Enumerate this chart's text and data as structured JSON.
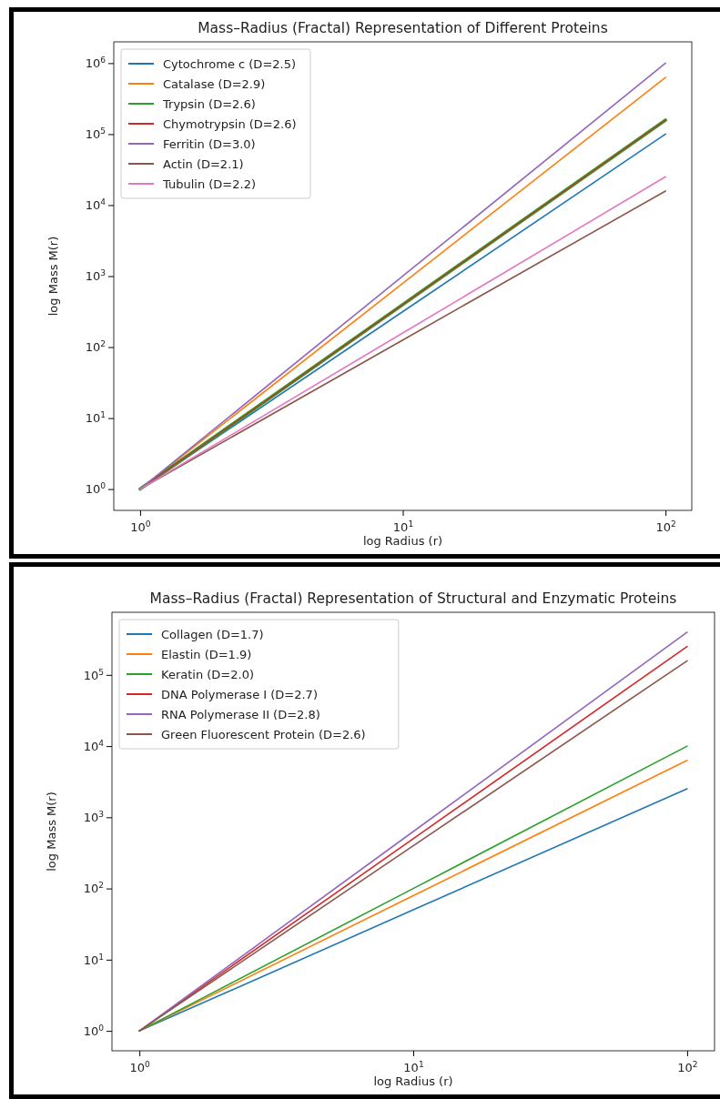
{
  "chart_data": [
    {
      "type": "line",
      "title": "Mass–Radius (Fractal) Representation of Different Proteins",
      "xlabel": "log Radius (r)",
      "ylabel": "log Mass M(r)",
      "log": "xy",
      "legend": "top left",
      "x": [
        1,
        10,
        100
      ],
      "xlim": [
        0.794,
        125.9
      ],
      "ylim": [
        0.501,
        1995000
      ],
      "xticks": [
        {
          "value": 1,
          "label": "10$^{0}$"
        },
        {
          "value": 10,
          "label": "10$^{1}$"
        },
        {
          "value": 100,
          "label": "10$^{2}$"
        }
      ],
      "yticks": [
        {
          "value": 1,
          "label": "10$^{0}$"
        },
        {
          "value": 10,
          "label": "10$^{1}$"
        },
        {
          "value": 100,
          "label": "10$^{2}$"
        },
        {
          "value": 1000,
          "label": "10$^{3}$"
        },
        {
          "value": 10000,
          "label": "10$^{4}$"
        },
        {
          "value": 100000,
          "label": "10$^{5}$"
        },
        {
          "value": 1000000,
          "label": "10$^{6}$"
        }
      ],
      "series": [
        {
          "name": "Cytochrome c (D=2.5)",
          "color": "#1f77b4",
          "values": [
            1,
            316,
            100000
          ]
        },
        {
          "name": "Catalase (D=2.9)",
          "color": "#ff7f0e",
          "values": [
            1,
            794,
            631000
          ]
        },
        {
          "name": "Trypsin (D=2.6)",
          "color": "#2ca02c",
          "values": [
            1,
            398,
            158000
          ]
        },
        {
          "name": "Chymotrypsin (D=2.6)",
          "color": "#d62728",
          "values": [
            1,
            398,
            158000
          ]
        },
        {
          "name": "Ferritin (D=3.0)",
          "color": "#9467bd",
          "values": [
            1,
            1000,
            1000000
          ]
        },
        {
          "name": "Actin (D=2.1)",
          "color": "#8c564b",
          "values": [
            1,
            126,
            15800
          ]
        },
        {
          "name": "Tubulin (D=2.2)",
          "color": "#e377c2",
          "values": [
            1,
            158,
            25100
          ]
        }
      ]
    },
    {
      "type": "line",
      "title": "Mass–Radius (Fractal) Representation of Structural and Enzymatic Proteins",
      "xlabel": "log Radius (r)",
      "ylabel": "log Mass M(r)",
      "log": "xy",
      "legend": "top left",
      "x": [
        1,
        10,
        100
      ],
      "xlim": [
        0.794,
        125.9
      ],
      "ylim": [
        0.525,
        758000
      ],
      "xticks": [
        {
          "value": 1,
          "label": "10$^{0}$"
        },
        {
          "value": 10,
          "label": "10$^{1}$"
        },
        {
          "value": 100,
          "label": "10$^{2}$"
        }
      ],
      "yticks": [
        {
          "value": 1,
          "label": "10$^{0}$"
        },
        {
          "value": 10,
          "label": "10$^{1}$"
        },
        {
          "value": 100,
          "label": "10$^{2}$"
        },
        {
          "value": 1000,
          "label": "10$^{3}$"
        },
        {
          "value": 10000,
          "label": "10$^{4}$"
        },
        {
          "value": 100000,
          "label": "10$^{5}$"
        }
      ],
      "series": [
        {
          "name": "Collagen (D=1.7)",
          "color": "#1f77b4",
          "values": [
            1,
            50.1,
            2510
          ]
        },
        {
          "name": "Elastin (D=1.9)",
          "color": "#ff7f0e",
          "values": [
            1,
            79.4,
            6310
          ]
        },
        {
          "name": "Keratin (D=2.0)",
          "color": "#2ca02c",
          "values": [
            1,
            100,
            10000
          ]
        },
        {
          "name": "DNA Polymerase I (D=2.7)",
          "color": "#d62728",
          "values": [
            1,
            501,
            251000
          ]
        },
        {
          "name": "RNA Polymerase II (D=2.8)",
          "color": "#9467bd",
          "values": [
            1,
            631,
            398000
          ]
        },
        {
          "name": "Green Fluorescent Protein (D=2.6)",
          "color": "#8c564b",
          "values": [
            1,
            398,
            158000
          ]
        }
      ]
    }
  ]
}
